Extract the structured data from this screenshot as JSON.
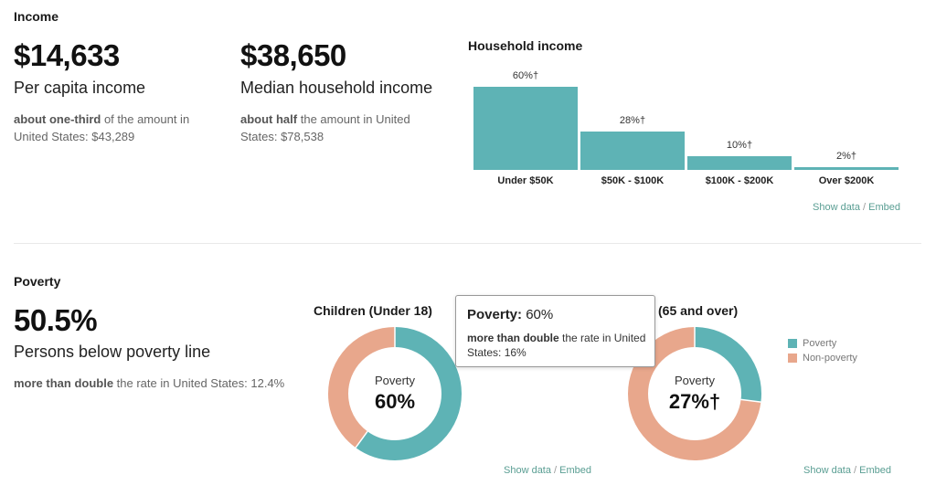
{
  "income": {
    "section_title": "Income",
    "per_capita": {
      "value": "$14,633",
      "label": "Per capita income",
      "comparison_bold": "about one-third",
      "comparison_text": " of the amount in United States: $43,289"
    },
    "median_household": {
      "value": "$38,650",
      "label": "Median household income",
      "comparison_bold": "about half",
      "comparison_text": " the amount in United States: $78,538"
    },
    "household_chart": {
      "title": "Household income",
      "show_data": "Show data",
      "separator": "/",
      "embed": "Embed"
    }
  },
  "poverty": {
    "section_title": "Poverty",
    "value": "50.5%",
    "label": "Persons below poverty line",
    "comparison_bold": "more than double",
    "comparison_text": " the rate in United States: 12.4%",
    "children_chart": {
      "title": "Children (Under 18)",
      "center_label": "Poverty",
      "center_value": "60%",
      "show_data": "Show data",
      "separator": "/",
      "embed": "Embed"
    },
    "seniors_chart": {
      "title_visible": "(65 and over)",
      "center_label": "Poverty",
      "center_value": "27%†",
      "show_data": "Show data",
      "separator": "/",
      "embed": "Embed"
    },
    "legend": [
      {
        "label": "Poverty",
        "color": "#5eb3b5"
      },
      {
        "label": "Non-poverty",
        "color": "#e8a78c"
      }
    ],
    "tooltip": {
      "title_bold": "Poverty:",
      "title_value": " 60%",
      "body_bold": "more than double",
      "body_text": " the rate in United States: 16%"
    }
  },
  "chart_data": [
    {
      "type": "bar",
      "title": "Household income",
      "categories": [
        "Under $50K",
        "$50K - $100K",
        "$100K - $200K",
        "Over $200K"
      ],
      "values": [
        60,
        28,
        10,
        2
      ],
      "value_labels": [
        "60%†",
        "28%†",
        "10%†",
        "2%†"
      ],
      "ylim": [
        0,
        60
      ],
      "xlabel": "",
      "ylabel": ""
    },
    {
      "type": "pie",
      "title": "Children (Under 18)",
      "categories": [
        "Poverty",
        "Non-poverty"
      ],
      "values": [
        60,
        40
      ]
    },
    {
      "type": "pie",
      "title": "Seniors (65 and over)",
      "categories": [
        "Poverty",
        "Non-poverty"
      ],
      "values": [
        27,
        73
      ]
    }
  ],
  "colors": {
    "poverty": "#5eb3b5",
    "non_poverty": "#e8a78c",
    "bar": "#5eb3b5",
    "link": "#5a9e93"
  }
}
